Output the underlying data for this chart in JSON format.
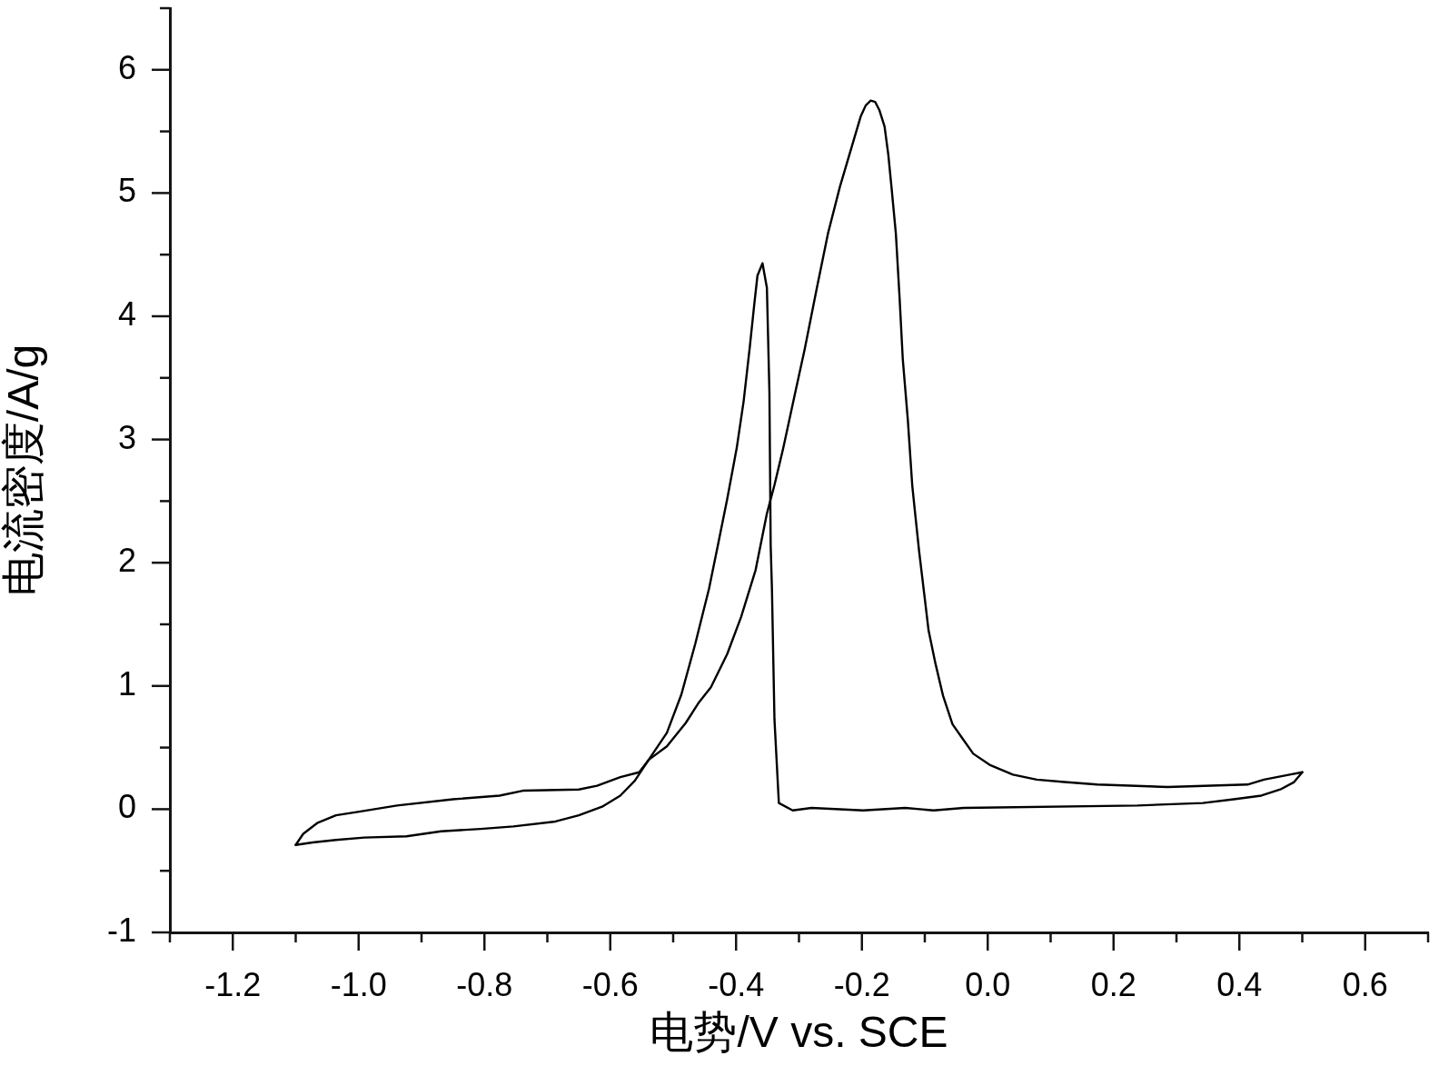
{
  "chart_data": {
    "type": "line",
    "xlabel": "电势/V vs. SCE",
    "ylabel": "电流密度/A/g",
    "marker": "none",
    "line_style": "solid",
    "grid": false,
    "legend": false,
    "xlim": [
      -1.3,
      0.7
    ],
    "ylim": [
      -1,
      6.5
    ],
    "xticks": [
      {
        "value": -1.3,
        "label": null
      },
      -1.2,
      {
        "value": -1.1,
        "label": null
      },
      {
        "value": -1.0,
        "label": "-1.0"
      },
      {
        "value": -0.9,
        "label": null
      },
      -0.8,
      {
        "value": -0.7,
        "label": null
      },
      -0.6,
      {
        "value": -0.5,
        "label": null
      },
      -0.4,
      {
        "value": -0.3,
        "label": null
      },
      -0.2,
      {
        "value": -0.1,
        "label": null
      },
      {
        "value": 0,
        "label": "0.0"
      },
      {
        "value": 0.1,
        "label": null
      },
      0.2,
      {
        "value": 0.3,
        "label": null
      },
      0.4,
      {
        "value": 0.5,
        "label": null
      },
      0.6,
      {
        "value": 0.7,
        "label": null
      }
    ],
    "yticks": [
      -1,
      {
        "value": -0.5,
        "label": null
      },
      0,
      {
        "value": 0.5,
        "label": null
      },
      1,
      {
        "value": 1.5,
        "label": null
      },
      2,
      {
        "value": 2.5,
        "label": null
      },
      3,
      {
        "value": 3.5,
        "label": null
      },
      4,
      {
        "value": 4.5,
        "label": null
      },
      5,
      {
        "value": 5.5,
        "label": null
      },
      6,
      {
        "value": 6.5,
        "label": null
      }
    ],
    "series": [
      {
        "color": "#000000",
        "x": [
          -1.1,
          -1.073,
          -1.036,
          -0.991,
          -0.924,
          -0.869,
          -0.806,
          -0.754,
          -0.687,
          -0.65,
          -0.613,
          -0.584,
          -0.561,
          -0.539,
          -0.51,
          -0.487,
          -0.465,
          -0.443,
          -0.429,
          -0.414,
          -0.399,
          -0.388,
          -0.378,
          -0.371,
          -0.366,
          -0.358,
          -0.351,
          -0.347,
          -0.345,
          -0.343,
          -0.339,
          -0.332,
          -0.31,
          -0.28,
          -0.198,
          -0.131,
          -0.086,
          -0.038,
          0.238,
          0.342,
          0.391,
          0.435,
          0.465,
          0.487,
          0.5
        ],
        "values": [
          -0.29,
          -0.27,
          -0.25,
          -0.23,
          -0.22,
          -0.18,
          -0.16,
          -0.14,
          -0.1,
          -0.05,
          0.02,
          0.11,
          0.23,
          0.4,
          0.62,
          0.93,
          1.34,
          1.79,
          2.14,
          2.52,
          2.93,
          3.31,
          3.76,
          4.1,
          4.33,
          4.43,
          4.23,
          3.38,
          2.14,
          1.79,
          0.73,
          0.05,
          -0.01,
          0.01,
          -0.01,
          0.01,
          -0.01,
          0.01,
          0.03,
          0.05,
          0.08,
          0.11,
          0.16,
          0.22,
          0.3
        ]
      },
      {
        "color": "#000000",
        "x": [
          -1.1,
          -1.088,
          -1.065,
          -1.036,
          -0.999,
          -0.939,
          -0.85,
          -0.776,
          -0.739,
          -0.65,
          -0.621,
          -0.584,
          -0.554,
          -0.539,
          -0.51,
          -0.48,
          -0.46,
          -0.44,
          -0.414,
          -0.392,
          -0.369,
          -0.351,
          -0.339,
          -0.325,
          -0.306,
          -0.291,
          -0.272,
          -0.254,
          -0.235,
          -0.224,
          -0.213,
          -0.202,
          -0.194,
          -0.186,
          -0.179,
          -0.172,
          -0.164,
          -0.158,
          -0.153,
          -0.146,
          -0.14,
          -0.135,
          -0.127,
          -0.12,
          -0.116,
          -0.109,
          -0.101,
          -0.094,
          -0.083,
          -0.071,
          -0.056,
          -0.041,
          -0.023,
          0.003,
          0.04,
          0.078,
          0.122,
          0.174,
          0.286,
          0.413,
          0.439,
          0.48,
          0.5
        ],
        "values": [
          -0.29,
          -0.2,
          -0.11,
          -0.05,
          -0.02,
          0.03,
          0.08,
          0.11,
          0.15,
          0.16,
          0.19,
          0.26,
          0.3,
          0.4,
          0.51,
          0.7,
          0.86,
          0.99,
          1.26,
          1.56,
          1.94,
          2.4,
          2.63,
          2.93,
          3.38,
          3.73,
          4.22,
          4.67,
          5.05,
          5.24,
          5.43,
          5.62,
          5.71,
          5.75,
          5.74,
          5.67,
          5.54,
          5.31,
          5.05,
          4.67,
          4.14,
          3.65,
          3.16,
          2.63,
          2.43,
          2.09,
          1.75,
          1.45,
          1.18,
          0.92,
          0.69,
          0.58,
          0.45,
          0.36,
          0.28,
          0.24,
          0.22,
          0.2,
          0.18,
          0.2,
          0.24,
          0.28,
          0.3
        ]
      }
    ]
  }
}
